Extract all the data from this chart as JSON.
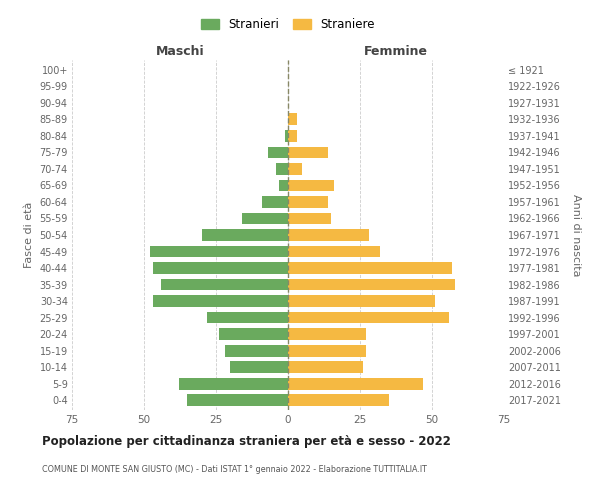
{
  "age_groups": [
    "0-4",
    "5-9",
    "10-14",
    "15-19",
    "20-24",
    "25-29",
    "30-34",
    "35-39",
    "40-44",
    "45-49",
    "50-54",
    "55-59",
    "60-64",
    "65-69",
    "70-74",
    "75-79",
    "80-84",
    "85-89",
    "90-94",
    "95-99",
    "100+"
  ],
  "birth_years": [
    "2017-2021",
    "2012-2016",
    "2007-2011",
    "2002-2006",
    "1997-2001",
    "1992-1996",
    "1987-1991",
    "1982-1986",
    "1977-1981",
    "1972-1976",
    "1967-1971",
    "1962-1966",
    "1957-1961",
    "1952-1956",
    "1947-1951",
    "1942-1946",
    "1937-1941",
    "1932-1936",
    "1927-1931",
    "1922-1926",
    "≤ 1921"
  ],
  "maschi": [
    35,
    38,
    20,
    22,
    24,
    28,
    47,
    44,
    47,
    48,
    30,
    16,
    9,
    3,
    4,
    7,
    1,
    0,
    0,
    0,
    0
  ],
  "femmine": [
    35,
    47,
    26,
    27,
    27,
    56,
    51,
    58,
    57,
    32,
    28,
    15,
    14,
    16,
    5,
    14,
    3,
    3,
    0,
    0,
    0
  ],
  "color_maschi": "#6aaa5e",
  "color_femmine": "#f5b942",
  "background_color": "#ffffff",
  "grid_color": "#cccccc",
  "xlim": 75,
  "title": "Popolazione per cittadinanza straniera per età e sesso - 2022",
  "subtitle": "COMUNE DI MONTE SAN GIUSTO (MC) - Dati ISTAT 1° gennaio 2022 - Elaborazione TUTTITALIA.IT",
  "ylabel_left": "Fasce di età",
  "ylabel_right": "Anni di nascita",
  "xlabel_maschi": "Maschi",
  "xlabel_femmine": "Femmine",
  "legend_stranieri": "Stranieri",
  "legend_straniere": "Straniere"
}
